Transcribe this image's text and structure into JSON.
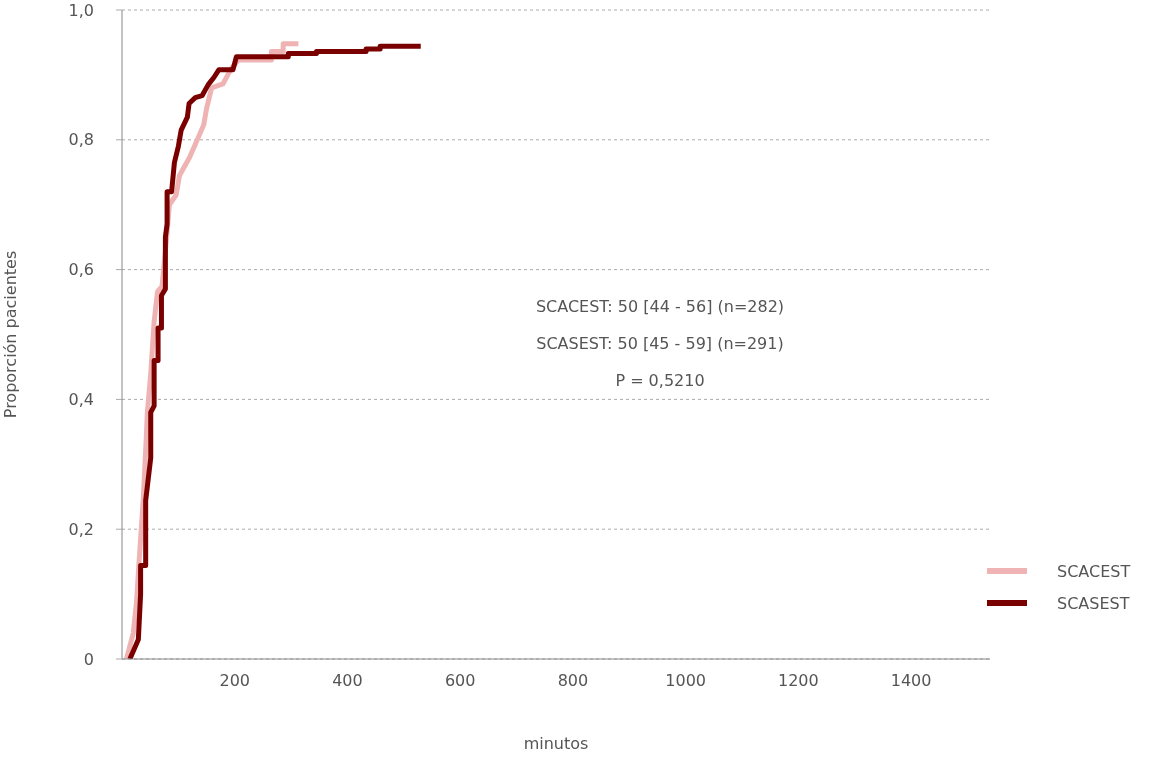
{
  "chart_data": {
    "type": "line",
    "xlabel": "minutos",
    "ylabel": "Proporción pacientes",
    "xlim": [
      0,
      1540
    ],
    "xticks": [
      200,
      400,
      600,
      800,
      1000,
      1200,
      1400
    ],
    "ylim": [
      0,
      1
    ],
    "yticks": [
      {
        "value": 0,
        "label": "0"
      },
      {
        "value": 0.2,
        "label": "0,2"
      },
      {
        "value": 0.4,
        "label": "0,4"
      },
      {
        "value": 0.6,
        "label": "0,6"
      },
      {
        "value": 0.8,
        "label": "0,8"
      },
      {
        "value": 1,
        "label": "1,0"
      }
    ],
    "grid": "y",
    "legend": "bottom right",
    "marker": "none",
    "line_style": "solid",
    "annotations": [
      "SCACEST: 50 [44 - 56] (n=282)",
      "SCASEST: 50 [45 - 59] (n=291)",
      "P = 0,5210"
    ],
    "series": [
      {
        "name": "SCACEST",
        "color": "#efb3b3",
        "x": [
          8,
          20,
          26,
          30,
          38,
          43,
          45,
          51,
          57,
          63,
          71,
          80,
          84,
          96,
          102,
          120,
          145,
          150,
          159,
          179,
          194,
          207,
          219,
          265,
          265,
          286,
          286,
          313
        ],
        "values": [
          0,
          0.04,
          0.09,
          0.146,
          0.25,
          0.34,
          0.38,
          0.44,
          0.52,
          0.566,
          0.574,
          0.657,
          0.7,
          0.715,
          0.745,
          0.773,
          0.823,
          0.848,
          0.88,
          0.886,
          0.91,
          0.923,
          0.923,
          0.923,
          0.936,
          0.936,
          0.948,
          0.948
        ]
      },
      {
        "name": "SCASEST",
        "color": "#7a0000",
        "x": [
          14,
          29,
          33,
          33,
          42,
          42,
          51,
          51,
          57,
          57,
          64,
          64,
          70,
          70,
          77,
          77,
          80,
          80,
          88,
          93,
          100,
          105,
          116,
          119,
          130,
          142,
          153,
          163,
          172,
          197,
          200,
          203,
          295,
          295,
          345,
          345,
          433,
          433,
          458,
          458,
          530
        ],
        "values": [
          0,
          0.03,
          0.1,
          0.144,
          0.144,
          0.244,
          0.31,
          0.38,
          0.39,
          0.46,
          0.46,
          0.51,
          0.51,
          0.56,
          0.57,
          0.65,
          0.67,
          0.72,
          0.72,
          0.765,
          0.79,
          0.815,
          0.835,
          0.856,
          0.865,
          0.868,
          0.885,
          0.896,
          0.908,
          0.908,
          0.918,
          0.928,
          0.928,
          0.933,
          0.933,
          0.936,
          0.936,
          0.94,
          0.94,
          0.944,
          0.944
        ]
      }
    ]
  }
}
